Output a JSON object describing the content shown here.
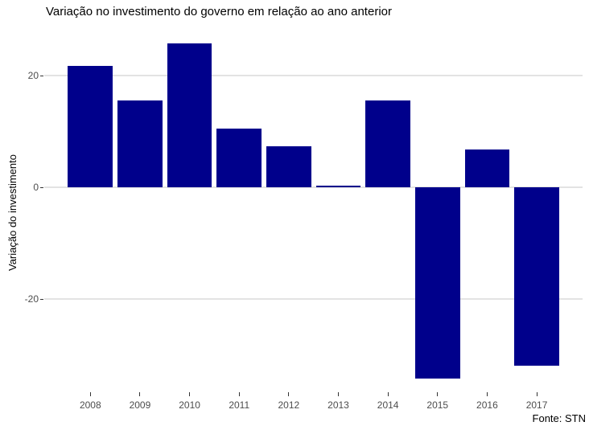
{
  "chart_data": {
    "type": "bar",
    "title": "Variação no investimento do governo em relação ao ano anterior",
    "ylabel": "Variação do investimento",
    "xlabel": "",
    "caption": "Fonte: STN",
    "categories": [
      "2008",
      "2009",
      "2010",
      "2011",
      "2012",
      "2013",
      "2014",
      "2015",
      "2016",
      "2017"
    ],
    "values": [
      21.7,
      15.5,
      25.8,
      10.5,
      7.4,
      0.3,
      15.5,
      -34.3,
      6.7,
      -31.9
    ],
    "yticks": [
      20,
      0,
      -20
    ],
    "ytick_labels": [
      "20",
      "0",
      "-20"
    ],
    "ylim": [
      -36.7,
      27.8
    ],
    "grid": "horizontal-major-only",
    "legend": "none",
    "bar_color": "#00008B",
    "gridline_color": "#e3e3e3",
    "tick_label_color": "#4d4d4d",
    "title_color": "#000000"
  }
}
